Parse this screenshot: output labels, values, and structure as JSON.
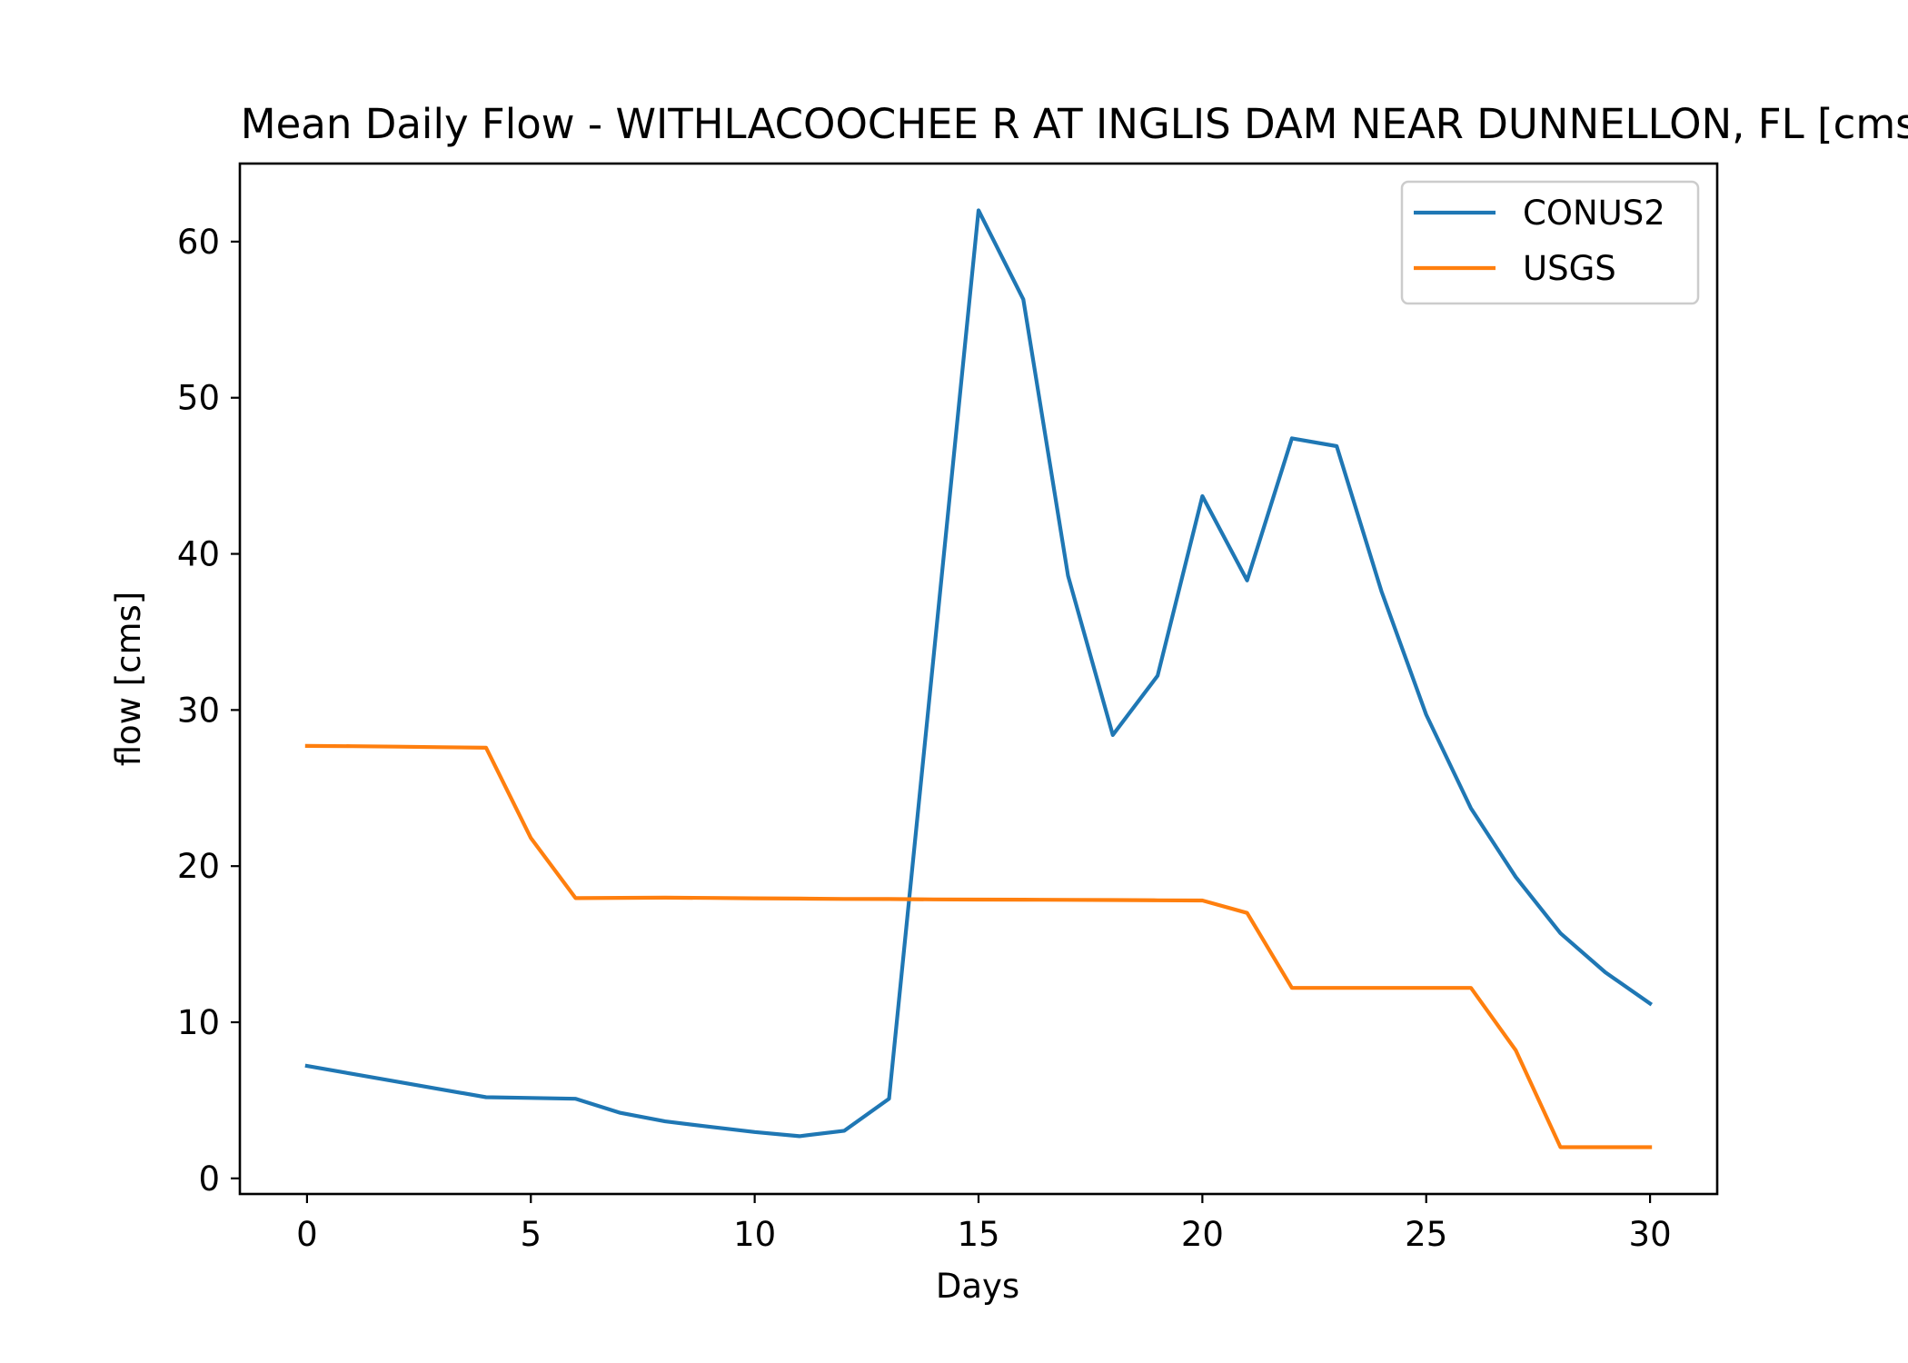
{
  "chart_data": {
    "type": "line",
    "title": "Mean Daily Flow - WITHLACOOCHEE R AT INGLIS DAM NEAR DUNNELLON, FL [cms]",
    "xlabel": "Days",
    "ylabel": "flow [cms]",
    "xlim": [
      -1.5,
      31.5
    ],
    "ylim": [
      -1,
      65
    ],
    "xticks": [
      0,
      5,
      10,
      15,
      20,
      25,
      30
    ],
    "yticks": [
      0,
      10,
      20,
      30,
      40,
      50,
      60
    ],
    "grid": false,
    "legend_position": "upper right",
    "x": [
      0,
      1,
      2,
      3,
      4,
      5,
      6,
      7,
      8,
      9,
      10,
      11,
      12,
      13,
      14,
      15,
      16,
      17,
      18,
      19,
      20,
      21,
      22,
      23,
      24,
      25,
      26,
      27,
      28,
      29,
      30
    ],
    "series": [
      {
        "name": "CONUS2",
        "color": "#1f77b4",
        "values": [
          7.2,
          6.7,
          6.2,
          5.7,
          5.2,
          5.15,
          5.1,
          4.2,
          3.65,
          3.3,
          2.97,
          2.7,
          3.05,
          5.1,
          33.5,
          62.0,
          56.3,
          38.6,
          28.4,
          32.2,
          43.7,
          38.3,
          47.4,
          46.9,
          37.6,
          29.7,
          23.7,
          19.3,
          15.7,
          13.2,
          11.2
        ]
      },
      {
        "name": "USGS",
        "color": "#ff7f0e",
        "values": [
          27.7,
          27.68,
          27.65,
          27.62,
          27.58,
          21.8,
          17.95,
          17.97,
          17.98,
          17.96,
          17.94,
          17.92,
          17.9,
          17.89,
          17.87,
          17.86,
          17.85,
          17.84,
          17.83,
          17.81,
          17.8,
          17.0,
          12.2,
          12.2,
          12.2,
          12.2,
          12.2,
          8.2,
          2.0,
          2.0,
          2.0
        ]
      }
    ]
  }
}
